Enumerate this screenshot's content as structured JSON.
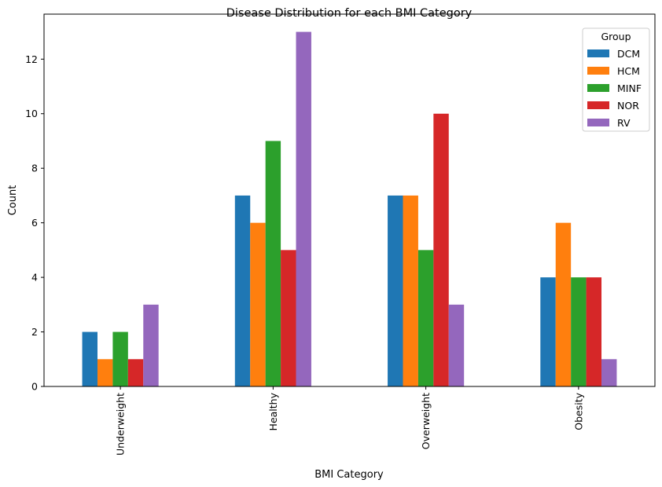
{
  "chart_data": {
    "type": "bar",
    "title": "Disease Distribution for each BMI Category",
    "xlabel": "BMI Category",
    "ylabel": "Count",
    "categories": [
      "Underweight",
      "Healthy",
      "Overweight",
      "Obesity"
    ],
    "ylim": [
      0,
      13.65
    ],
    "yticks": [
      0,
      2,
      4,
      6,
      8,
      10,
      12
    ],
    "legend": {
      "title": "Group",
      "placement": "top-right"
    },
    "series": [
      {
        "name": "DCM",
        "color": "#1f77b4",
        "values": [
          2,
          7,
          7,
          4
        ]
      },
      {
        "name": "HCM",
        "color": "#ff7f0e",
        "values": [
          1,
          6,
          7,
          6
        ]
      },
      {
        "name": "MINF",
        "color": "#2ca02c",
        "values": [
          2,
          9,
          5,
          4
        ]
      },
      {
        "name": "NOR",
        "color": "#d62728",
        "values": [
          1,
          5,
          10,
          4
        ]
      },
      {
        "name": "RV",
        "color": "#9467bd",
        "values": [
          3,
          13,
          3,
          1
        ]
      }
    ]
  }
}
